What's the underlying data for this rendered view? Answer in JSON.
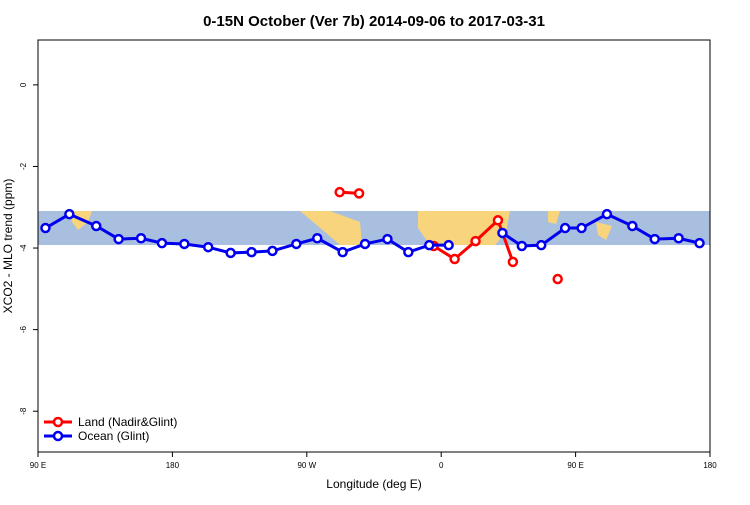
{
  "chart_data": {
    "type": "line",
    "title": "0-15N October (Ver 7b)   2014-09-06 to 2017-03-31",
    "x_label": "Longitude (deg E)",
    "y_label": "XCO2 - MLO trend (ppm)",
    "xlim": [
      90,
      540
    ],
    "ylim": [
      -9,
      1.1
    ],
    "xticks": [
      {
        "value": 90,
        "label": "90 E"
      },
      180,
      {
        "value": 270,
        "label": "90 W"
      },
      {
        "value": 360,
        "label": "0"
      },
      {
        "value": 450,
        "label": "90 E"
      },
      {
        "value": 540,
        "label": "180"
      }
    ],
    "yticks": [
      -8,
      -6,
      -4,
      -2,
      0
    ],
    "legend": "bottom-left",
    "series": [
      {
        "name": "Land (Nadir&Glint)",
        "color": "#ff0000",
        "x": [
          292,
          305,
          null,
          355,
          369,
          383,
          398,
          408,
          null,
          438
        ],
        "values": [
          -2.63,
          -2.66,
          null,
          -3.95,
          -4.27,
          -3.83,
          -3.32,
          -4.34,
          null,
          -4.76
        ]
      },
      {
        "name": "Ocean (Glint)",
        "color": "#0000ee",
        "x": [
          95,
          111,
          129,
          144,
          159,
          173,
          188,
          204,
          219,
          233,
          247,
          263,
          277,
          294,
          309,
          324,
          338,
          352,
          365,
          null,
          401,
          414,
          427,
          443,
          454,
          471,
          488,
          503,
          519,
          533
        ],
        "values": [
          -3.51,
          -3.17,
          -3.46,
          -3.78,
          -3.76,
          -3.88,
          -3.9,
          -3.98,
          -4.12,
          -4.1,
          -4.07,
          -3.9,
          -3.76,
          -4.1,
          -3.9,
          -3.78,
          -4.1,
          -3.93,
          -3.93,
          null,
          -3.63,
          -3.95,
          -3.93,
          -3.51,
          -3.51,
          -3.17,
          -3.46,
          -3.78,
          -3.76,
          -3.88
        ]
      }
    ]
  }
}
